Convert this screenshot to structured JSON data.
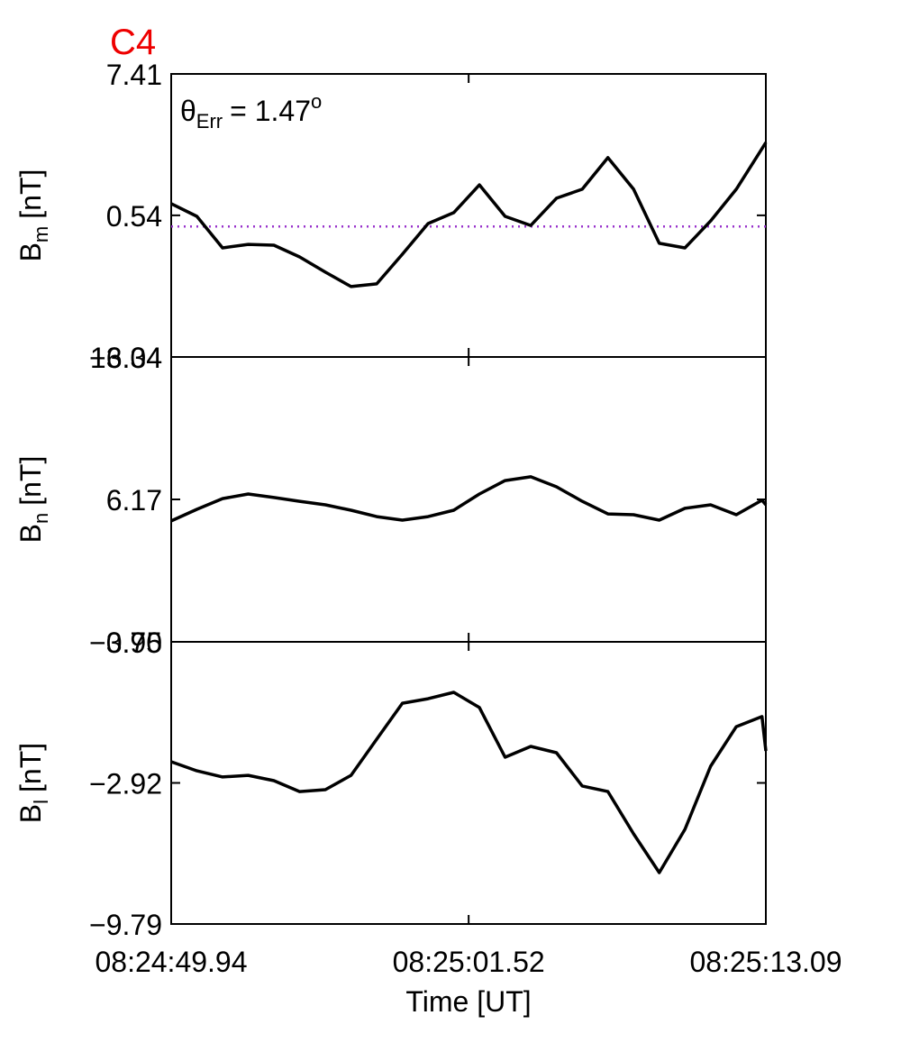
{
  "chart_data": {
    "type": "line",
    "title": "C4",
    "title_color": "#ee0000",
    "xlabel": "Time [UT]",
    "x": [
      "08:24:49.94",
      "08:24:50.94",
      "08:24:51.94",
      "08:24:52.94",
      "08:24:53.94",
      "08:24:54.94",
      "08:24:55.94",
      "08:24:56.94",
      "08:24:57.94",
      "08:24:58.94",
      "08:24:59.94",
      "08:25:00.94",
      "08:25:01.94",
      "08:25:02.94",
      "08:25:03.94",
      "08:25:04.94",
      "08:25:05.94",
      "08:25:06.94",
      "08:25:07.94",
      "08:25:08.94",
      "08:25:09.94",
      "08:25:10.94",
      "08:25:11.94",
      "08:25:12.94",
      "08:25:13.09"
    ],
    "xlim": [
      "08:24:49.94",
      "08:25:13.09"
    ],
    "xticks": [
      "08:24:49.94",
      "08:25:01.52",
      "08:25:13.09"
    ],
    "annotation": {
      "symbol": "θ",
      "sub": "Err",
      "text": "=  1.47",
      "sup": "o"
    },
    "panels": [
      {
        "ylabel": "B",
        "ylabel_sub": "m",
        "ylabel_unit": "[nT]",
        "ylim": [
          -6.34,
          7.41
        ],
        "yticks": [
          {
            "value": -6.34,
            "label": "−6.34"
          },
          0.54,
          7.41
        ],
        "color": "#000000",
        "hline": 0,
        "hline_color": "#9933cc",
        "values": [
          1.11,
          0.49,
          -1.04,
          -0.87,
          -0.91,
          -1.48,
          -2.22,
          -2.92,
          -2.79,
          -1.35,
          0.14,
          0.67,
          2.02,
          0.49,
          0.05,
          1.37,
          1.81,
          3.34,
          1.81,
          -0.82,
          -1.04,
          0.27,
          1.81,
          3.78,
          4.08
        ]
      },
      {
        "ylabel": "B",
        "ylabel_sub": "n",
        "ylabel_unit": "[nT]",
        "ylim": [
          -0.7,
          13.04
        ],
        "yticks": [
          {
            "value": -0.7,
            "label": "−0.70"
          },
          6.17,
          13.04
        ],
        "color": "#000000",
        "values": [
          5.13,
          5.69,
          6.21,
          6.43,
          6.26,
          6.08,
          5.91,
          5.65,
          5.34,
          5.17,
          5.34,
          5.65,
          6.43,
          7.08,
          7.26,
          6.78,
          6.08,
          5.47,
          5.43,
          5.17,
          5.74,
          5.91,
          5.43,
          6.13,
          5.91
        ]
      },
      {
        "ylabel": "B",
        "ylabel_sub": "l",
        "ylabel_unit": "[nT]",
        "ylim": [
          -9.79,
          3.95
        ],
        "yticks": [
          {
            "value": -9.79,
            "label": "−9.79"
          },
          {
            "value": -2.92,
            "label": "−2.92"
          },
          3.95
        ],
        "color": "#000000",
        "values": [
          -1.89,
          -2.33,
          -2.63,
          -2.55,
          -2.81,
          -3.34,
          -3.25,
          -2.55,
          -0.79,
          0.96,
          1.18,
          1.49,
          0.75,
          -1.67,
          -1.14,
          -1.45,
          -3.07,
          -3.34,
          -5.4,
          -7.29,
          -5.18,
          -2.11,
          -0.18,
          0.31,
          -1.36
        ]
      }
    ]
  }
}
